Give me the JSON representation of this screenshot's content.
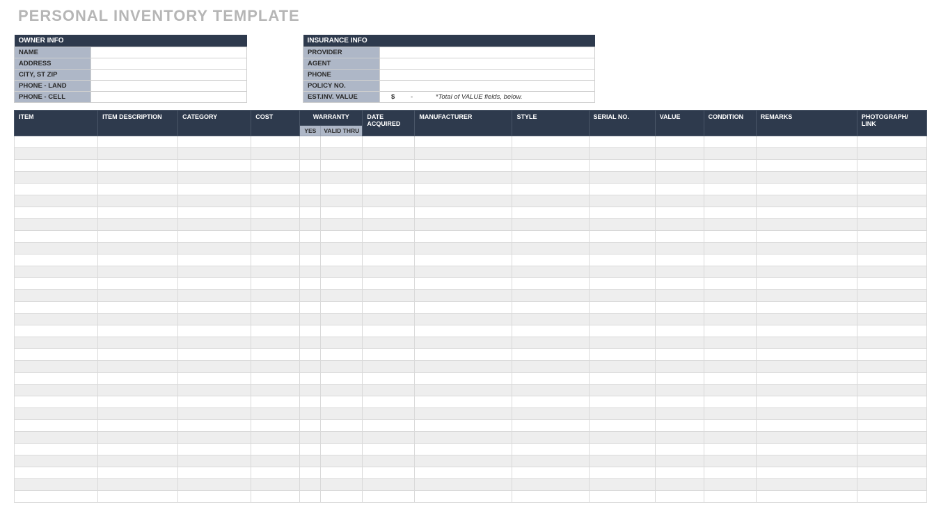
{
  "title": "PERSONAL INVENTORY TEMPLATE",
  "colors": {
    "header_bg": "#2e3a4d",
    "header_fg": "#ffffff",
    "label_bg": "#aeb7c7",
    "label_fg": "#2a2a2a",
    "row_alt_bg": "#eeeeee",
    "row_bg": "#ffffff",
    "title_color": "#b6b6b6",
    "border_color": "#d9d9d9"
  },
  "typography": {
    "title_fontsize_pt": 17,
    "header_fontsize_pt": 7,
    "label_fontsize_pt": 7,
    "font_family": "Arial"
  },
  "owner_info": {
    "header": "OWNER INFO",
    "fields": [
      {
        "label": "NAME",
        "value": ""
      },
      {
        "label": "ADDRESS",
        "value": ""
      },
      {
        "label": "CITY, ST ZIP",
        "value": ""
      },
      {
        "label": "PHONE - LAND",
        "value": ""
      },
      {
        "label": "PHONE - CELL",
        "value": ""
      }
    ]
  },
  "insurance_info": {
    "header": "INSURANCE INFO",
    "fields": [
      {
        "label": "PROVIDER",
        "value": ""
      },
      {
        "label": "AGENT",
        "value": ""
      },
      {
        "label": "PHONE",
        "value": ""
      },
      {
        "label": "POLICY NO.",
        "value": ""
      }
    ],
    "est_label": "EST.INV. VALUE",
    "est_currency": "$",
    "est_amount": "-",
    "est_note": "*Total of VALUE fields, below."
  },
  "inventory_table": {
    "columns": [
      {
        "key": "item",
        "label": "ITEM"
      },
      {
        "key": "desc",
        "label": "ITEM DESCRIPTION"
      },
      {
        "key": "category",
        "label": "CATEGORY"
      },
      {
        "key": "cost",
        "label": "COST"
      },
      {
        "key": "warranty",
        "label": "WARRANTY",
        "sub": [
          "YES",
          "VALID THRU"
        ]
      },
      {
        "key": "date",
        "label": "DATE ACQUIRED"
      },
      {
        "key": "manufacturer",
        "label": "MANUFACTURER"
      },
      {
        "key": "style",
        "label": "STYLE"
      },
      {
        "key": "serial",
        "label": "SERIAL NO."
      },
      {
        "key": "value",
        "label": "VALUE"
      },
      {
        "key": "condition",
        "label": "CONDITION"
      },
      {
        "key": "remarks",
        "label": "REMARKS"
      },
      {
        "key": "photo",
        "label": "PHOTOGRAPH/ LINK"
      }
    ],
    "row_count": 31
  }
}
